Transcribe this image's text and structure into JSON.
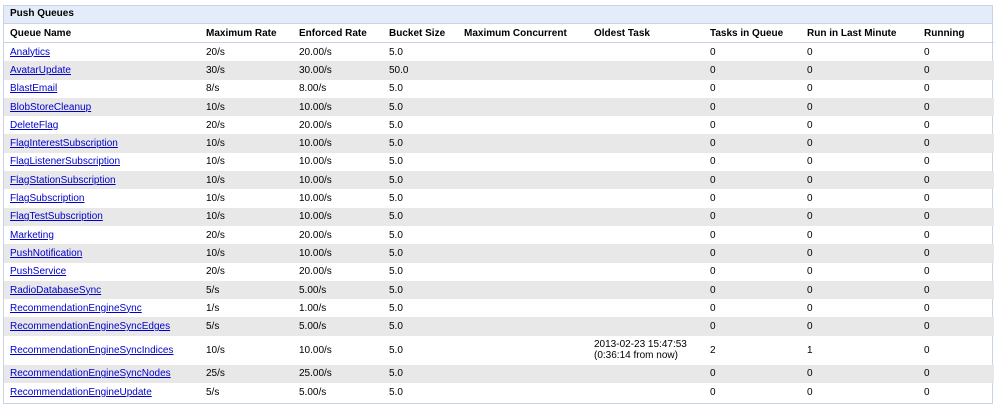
{
  "panel_title": "Push Queues",
  "columns": [
    "Queue Name",
    "Maximum Rate",
    "Enforced Rate",
    "Bucket Size",
    "Maximum Concurrent",
    "Oldest Task",
    "Tasks in Queue",
    "Run in Last Minute",
    "Running"
  ],
  "rows": [
    {
      "name": "Analytics",
      "max_rate": "20/s",
      "enforced_rate": "20.00/s",
      "bucket": "5.0",
      "max_concurrent": "",
      "oldest": "",
      "oldest2": "",
      "tasks": "0",
      "last_min": "0",
      "running": "0"
    },
    {
      "name": "AvatarUpdate",
      "max_rate": "30/s",
      "enforced_rate": "30.00/s",
      "bucket": "50.0",
      "max_concurrent": "",
      "oldest": "",
      "oldest2": "",
      "tasks": "0",
      "last_min": "0",
      "running": "0"
    },
    {
      "name": "BlastEmail",
      "max_rate": "8/s",
      "enforced_rate": "8.00/s",
      "bucket": "5.0",
      "max_concurrent": "",
      "oldest": "",
      "oldest2": "",
      "tasks": "0",
      "last_min": "0",
      "running": "0"
    },
    {
      "name": "BlobStoreCleanup",
      "max_rate": "10/s",
      "enforced_rate": "10.00/s",
      "bucket": "5.0",
      "max_concurrent": "",
      "oldest": "",
      "oldest2": "",
      "tasks": "0",
      "last_min": "0",
      "running": "0"
    },
    {
      "name": "DeleteFlag",
      "max_rate": "20/s",
      "enforced_rate": "20.00/s",
      "bucket": "5.0",
      "max_concurrent": "",
      "oldest": "",
      "oldest2": "",
      "tasks": "0",
      "last_min": "0",
      "running": "0"
    },
    {
      "name": "FlagInterestSubscription",
      "max_rate": "10/s",
      "enforced_rate": "10.00/s",
      "bucket": "5.0",
      "max_concurrent": "",
      "oldest": "",
      "oldest2": "",
      "tasks": "0",
      "last_min": "0",
      "running": "0"
    },
    {
      "name": "FlagListenerSubscription",
      "max_rate": "10/s",
      "enforced_rate": "10.00/s",
      "bucket": "5.0",
      "max_concurrent": "",
      "oldest": "",
      "oldest2": "",
      "tasks": "0",
      "last_min": "0",
      "running": "0"
    },
    {
      "name": "FlagStationSubscription",
      "max_rate": "10/s",
      "enforced_rate": "10.00/s",
      "bucket": "5.0",
      "max_concurrent": "",
      "oldest": "",
      "oldest2": "",
      "tasks": "0",
      "last_min": "0",
      "running": "0"
    },
    {
      "name": "FlagSubscription",
      "max_rate": "10/s",
      "enforced_rate": "10.00/s",
      "bucket": "5.0",
      "max_concurrent": "",
      "oldest": "",
      "oldest2": "",
      "tasks": "0",
      "last_min": "0",
      "running": "0"
    },
    {
      "name": "FlagTestSubscription",
      "max_rate": "10/s",
      "enforced_rate": "10.00/s",
      "bucket": "5.0",
      "max_concurrent": "",
      "oldest": "",
      "oldest2": "",
      "tasks": "0",
      "last_min": "0",
      "running": "0"
    },
    {
      "name": "Marketing",
      "max_rate": "20/s",
      "enforced_rate": "20.00/s",
      "bucket": "5.0",
      "max_concurrent": "",
      "oldest": "",
      "oldest2": "",
      "tasks": "0",
      "last_min": "0",
      "running": "0"
    },
    {
      "name": "PushNotification",
      "max_rate": "10/s",
      "enforced_rate": "10.00/s",
      "bucket": "5.0",
      "max_concurrent": "",
      "oldest": "",
      "oldest2": "",
      "tasks": "0",
      "last_min": "0",
      "running": "0"
    },
    {
      "name": "PushService",
      "max_rate": "20/s",
      "enforced_rate": "20.00/s",
      "bucket": "5.0",
      "max_concurrent": "",
      "oldest": "",
      "oldest2": "",
      "tasks": "0",
      "last_min": "0",
      "running": "0"
    },
    {
      "name": "RadioDatabaseSync",
      "max_rate": "5/s",
      "enforced_rate": "5.00/s",
      "bucket": "5.0",
      "max_concurrent": "",
      "oldest": "",
      "oldest2": "",
      "tasks": "0",
      "last_min": "0",
      "running": "0"
    },
    {
      "name": "RecommendationEngineSync",
      "max_rate": "1/s",
      "enforced_rate": "1.00/s",
      "bucket": "5.0",
      "max_concurrent": "",
      "oldest": "",
      "oldest2": "",
      "tasks": "0",
      "last_min": "0",
      "running": "0"
    },
    {
      "name": "RecommendationEngineSyncEdges",
      "max_rate": "5/s",
      "enforced_rate": "5.00/s",
      "bucket": "5.0",
      "max_concurrent": "",
      "oldest": "",
      "oldest2": "",
      "tasks": "0",
      "last_min": "0",
      "running": "0"
    },
    {
      "name": "RecommendationEngineSyncIndices",
      "max_rate": "10/s",
      "enforced_rate": "10.00/s",
      "bucket": "5.0",
      "max_concurrent": "",
      "oldest": "2013-02-23 15:47:53",
      "oldest2": "(0:36:14 from now)",
      "tasks": "2",
      "last_min": "1",
      "running": "0"
    },
    {
      "name": "RecommendationEngineSyncNodes",
      "max_rate": "25/s",
      "enforced_rate": "25.00/s",
      "bucket": "5.0",
      "max_concurrent": "",
      "oldest": "",
      "oldest2": "",
      "tasks": "0",
      "last_min": "0",
      "running": "0"
    },
    {
      "name": "RecommendationEngineUpdate",
      "max_rate": "5/s",
      "enforced_rate": "5.00/s",
      "bucket": "5.0",
      "max_concurrent": "",
      "oldest": "",
      "oldest2": "",
      "tasks": "0",
      "last_min": "0",
      "running": "0"
    }
  ]
}
